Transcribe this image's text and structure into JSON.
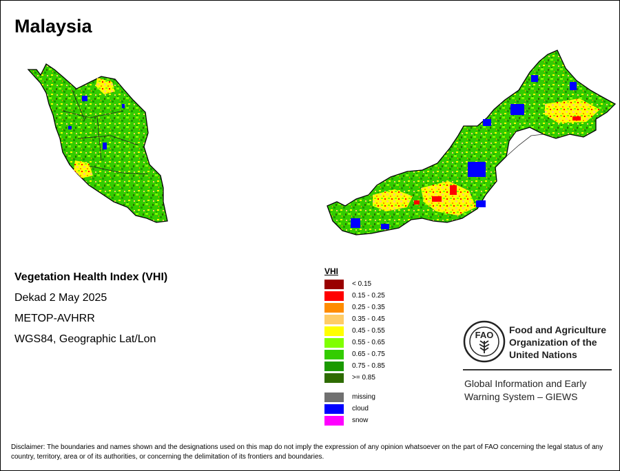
{
  "map": {
    "title": "Malaysia",
    "info": {
      "index_name": "Vegetation Health Index (VHI)",
      "period": "Dekad 2 May 2025",
      "sensor": "METOP-AVHRR",
      "projection": "WGS84, Geographic Lat/Lon"
    },
    "legend": {
      "title": "VHI",
      "classes": [
        {
          "label": "< 0.15",
          "color": "#990000"
        },
        {
          "label": "0.15 - 0.25",
          "color": "#ff0000"
        },
        {
          "label": "0.25 - 0.35",
          "color": "#ff8c00"
        },
        {
          "label": "0.35 - 0.45",
          "color": "#ffcc66"
        },
        {
          "label": "0.45 - 0.55",
          "color": "#ffff00"
        },
        {
          "label": "0.55 - 0.65",
          "color": "#80ff00"
        },
        {
          "label": "0.65 - 0.75",
          "color": "#33cc00"
        },
        {
          "label": "0.75 - 0.85",
          "color": "#1a9900"
        },
        {
          "label": ">= 0.85",
          "color": "#2d6b00"
        }
      ],
      "special": [
        {
          "label": "missing",
          "color": "#707070"
        },
        {
          "label": "cloud",
          "color": "#0000ff"
        },
        {
          "label": "snow",
          "color": "#ff00ff"
        }
      ]
    }
  },
  "fao": {
    "logo_text": "FAO",
    "name_lines": [
      "Food and Agriculture",
      "Organization of the",
      "United Nations"
    ],
    "giews_lines": [
      "Global Information and Early",
      "Warning System – GIEWS"
    ]
  },
  "disclaimer": "Disclaimer: The boundaries and names shown and the designations used on this map do not imply the expression of any opinion whatsoever on the part of FAO concerning the legal status of any country, territory, area or of its authorities, or concerning the delimitation of its frontiers and boundaries."
}
